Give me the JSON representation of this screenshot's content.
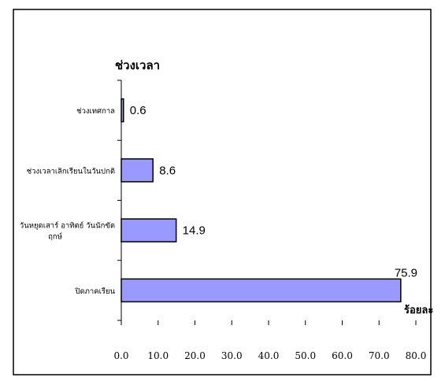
{
  "chart_data": {
    "type": "bar",
    "orientation": "horizontal",
    "title": "ช่วงเวลา",
    "xlabel": "ร้อยละ",
    "ylabel": "",
    "categories": [
      "ช่วงเทศกาล",
      "ช่วงเวลาเลิกเรียนในวันปกติ",
      "วันหยุดเสาร์ อาทิตย์ วันนักขัตฤกษ์",
      "ปิดภาคเรียน"
    ],
    "category_lines": [
      [
        "ช่วงเทศกาล"
      ],
      [
        "ช่วงเวลาเลิกเรียนในวันปกติ"
      ],
      [
        "วันหยุดเสาร์ อาทิตย์ วันนักขัต",
        "ฤกษ์"
      ],
      [
        "ปิดภาคเรียน"
      ]
    ],
    "values": [
      0.6,
      8.6,
      14.9,
      75.9
    ],
    "data_labels": [
      "0.6",
      "8.6",
      "14.9",
      "75.9"
    ],
    "xlim": [
      0,
      80
    ],
    "xticks": [
      "0.0",
      "10.0",
      "20.0",
      "30.0",
      "40.0",
      "50.0",
      "60.0",
      "70.0",
      "80.0"
    ],
    "bar_color": "#9999ff",
    "grid": false,
    "legend": "none"
  }
}
